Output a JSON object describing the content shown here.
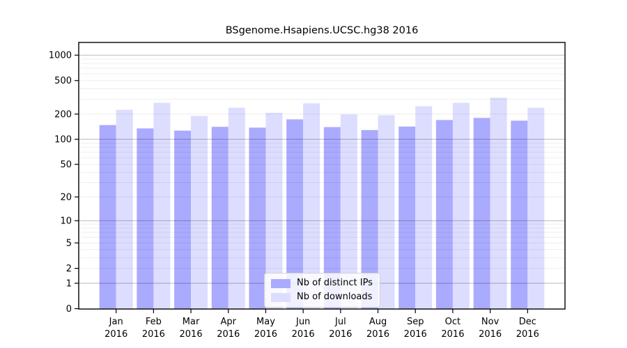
{
  "chart_data": {
    "type": "bar",
    "title": "BSgenome.Hsapiens.UCSC.hg38 2016",
    "categories": [
      "Jan",
      "Feb",
      "Mar",
      "Apr",
      "May",
      "Jun",
      "Jul",
      "Aug",
      "Sep",
      "Oct",
      "Nov",
      "Dec"
    ],
    "x_axis": {
      "year": "2016"
    },
    "series": [
      {
        "name": "Nb of distinct IPs",
        "color": "#aaaaff",
        "values": [
          148,
          135,
          127,
          141,
          138,
          173,
          140,
          129,
          142,
          170,
          180,
          167
        ]
      },
      {
        "name": "Nb of downloads",
        "color": "#ddddff",
        "values": [
          225,
          272,
          190,
          238,
          207,
          268,
          198,
          194,
          248,
          272,
          313,
          238
        ]
      }
    ],
    "y_axis": {
      "scale": "log10(value+1)",
      "ticks": [
        0,
        1,
        2,
        5,
        10,
        20,
        50,
        100,
        200,
        500,
        1000
      ],
      "ylim": [
        0,
        1400
      ]
    },
    "grid": {
      "minor_color": "rgba(0,0,0,0.07)",
      "major_color": "rgba(0,0,0,0.28)",
      "major_values": [
        1,
        10,
        100,
        1000
      ]
    },
    "axis_color": "#000000",
    "legend_position": "inside-bottom-center"
  }
}
